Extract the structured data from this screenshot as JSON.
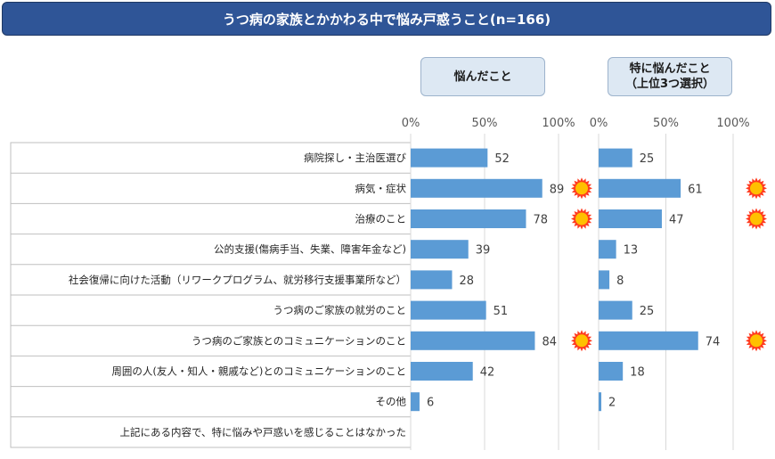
{
  "title": "うつ病の家族とかかわる中で悩み戸惑うこと(n=166)",
  "panels": [
    {
      "header_lines": [
        "悩んだこと"
      ]
    },
    {
      "header_lines": [
        "特に悩んだこと",
        "（上位3つ選択）"
      ]
    }
  ],
  "chart_data": [
    {
      "type": "bar",
      "orientation": "horizontal",
      "title": "悩んだこと",
      "categories": [
        "病院探し・主治医選び",
        "病気・症状",
        "治療のこと",
        "公的支援(傷病手当、失業、障害年金など)",
        "社会復帰に向けた活動（リワークプログラム、就労移行支援事業所など）",
        "うつ病のご家族の就労のこと",
        "うつ病のご家族とのコミュニケーションのこと",
        "周囲の人(友人・知人・親戚など)とのコミュニケーションのこと",
        "その他",
        "上記にある内容で、特に悩みや戸惑いを感じることはなかった"
      ],
      "values": [
        52,
        89,
        78,
        39,
        28,
        51,
        84,
        42,
        6,
        null
      ],
      "highlighted": [
        false,
        true,
        true,
        false,
        false,
        false,
        true,
        false,
        false,
        false
      ],
      "xlim": [
        0,
        100
      ],
      "ticks": [
        "0%",
        "50%",
        "100%"
      ],
      "bar_color": "#5b9bd5",
      "highlight_marker_color": "#ff3b1f",
      "grid": true
    },
    {
      "type": "bar",
      "orientation": "horizontal",
      "title": "特に悩んだこと（上位3つ選択）",
      "categories": [
        "病院探し・主治医選び",
        "病気・症状",
        "治療のこと",
        "公的支援(傷病手当、失業、障害年金など)",
        "社会復帰に向けた活動（リワークプログラム、就労移行支援事業所など）",
        "うつ病のご家族の就労のこと",
        "うつ病のご家族とのコミュニケーションのこと",
        "周囲の人(友人・知人・親戚など)とのコミュニケーションのこと",
        "その他",
        "上記にある内容で、特に悩みや戸惑いを感じることはなかった"
      ],
      "values": [
        25,
        61,
        47,
        13,
        8,
        25,
        74,
        18,
        2,
        null
      ],
      "highlighted": [
        false,
        true,
        true,
        false,
        false,
        false,
        true,
        false,
        false,
        false
      ],
      "xlim": [
        0,
        100
      ],
      "ticks": [
        "0%",
        "50%",
        "100%"
      ],
      "bar_color": "#5b9bd5",
      "highlight_marker_color": "#ff3b1f",
      "grid": true
    }
  ]
}
